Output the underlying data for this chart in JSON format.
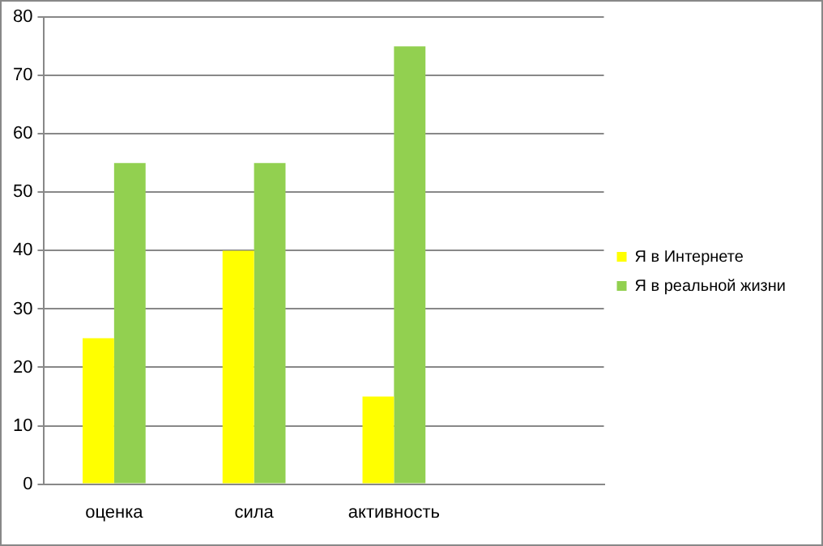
{
  "chart_data": {
    "type": "bar",
    "categories": [
      "оценка",
      "сила",
      "активность",
      null
    ],
    "series": [
      {
        "name": "Я в Интернете",
        "color": "#ffff00",
        "values": [
          25,
          40,
          15,
          null
        ]
      },
      {
        "name": "Я в реальной жизни",
        "color": "#92d050",
        "values": [
          55,
          55,
          75,
          null
        ]
      }
    ],
    "ylim": [
      0,
      80
    ],
    "yticks": [
      0,
      10,
      20,
      30,
      40,
      50,
      60,
      70,
      80
    ],
    "grid": "y",
    "legend": "right"
  }
}
